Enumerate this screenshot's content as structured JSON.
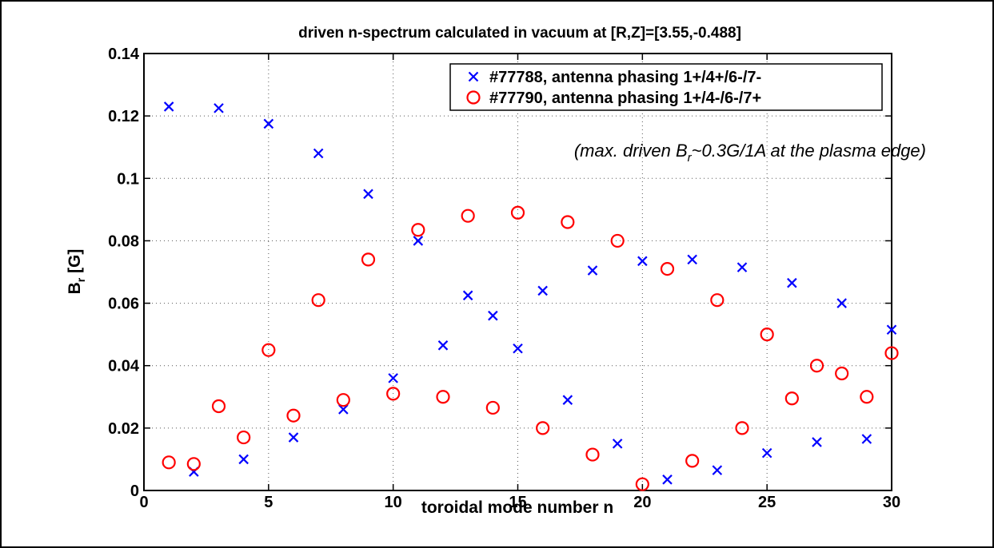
{
  "chart_data": {
    "type": "scatter",
    "title": "driven n-spectrum calculated in vacuum at [R,Z]=[3.55,-0.488]",
    "xlabel": "toroidal mode number n",
    "ylabel": {
      "main": "B",
      "sub": "r",
      "unit": " [G]"
    },
    "xlim": [
      0,
      30
    ],
    "ylim": [
      0,
      0.14
    ],
    "xticks": [
      0,
      5,
      10,
      15,
      20,
      25,
      30
    ],
    "yticks": [
      0,
      0.02,
      0.04,
      0.06,
      0.08,
      0.1,
      0.12,
      0.14
    ],
    "ytick_labels": [
      "0",
      "0.02",
      "0.04",
      "0.06",
      "0.08",
      "0.1",
      "0.12",
      "0.14"
    ],
    "grid": true,
    "legend_position": "top-right",
    "annotation": {
      "prefix": "(max. driven B",
      "sub": "r",
      "suffix": "~0.3G/1A at the plasma edge)"
    },
    "series": [
      {
        "name": "#77788, antenna phasing 1+/4+/6-/7-",
        "marker": "x",
        "color": "#0000ff",
        "x": [
          1,
          2,
          3,
          4,
          5,
          6,
          7,
          8,
          9,
          10,
          11,
          12,
          13,
          14,
          15,
          16,
          17,
          18,
          19,
          20,
          21,
          22,
          23,
          24,
          25,
          26,
          27,
          28,
          29,
          30
        ],
        "y": [
          0.123,
          0.006,
          0.1225,
          0.01,
          0.1175,
          0.017,
          0.108,
          0.026,
          0.095,
          0.036,
          0.08,
          0.0465,
          0.0625,
          0.056,
          0.0455,
          0.064,
          0.029,
          0.0705,
          0.015,
          0.0735,
          0.0035,
          0.074,
          0.0065,
          0.0715,
          0.012,
          0.0665,
          0.0155,
          0.06,
          0.0165,
          0.0515
        ]
      },
      {
        "name": "#77790, antenna phasing 1+/4-/6-/7+",
        "marker": "o",
        "color": "#ff0000",
        "x": [
          1,
          2,
          3,
          4,
          5,
          6,
          7,
          8,
          9,
          10,
          11,
          12,
          13,
          14,
          15,
          16,
          17,
          18,
          19,
          20,
          21,
          22,
          23,
          24,
          25,
          26,
          27,
          28,
          29,
          30
        ],
        "y": [
          0.009,
          0.0085,
          0.027,
          0.017,
          0.045,
          0.024,
          0.061,
          0.029,
          0.074,
          0.031,
          0.0835,
          0.03,
          0.088,
          0.0265,
          0.089,
          0.02,
          0.086,
          0.0115,
          0.08,
          0.002,
          0.071,
          0.0095,
          0.061,
          0.02,
          0.05,
          0.0295,
          0.04,
          0.0375,
          0.03,
          0.044
        ]
      }
    ]
  }
}
